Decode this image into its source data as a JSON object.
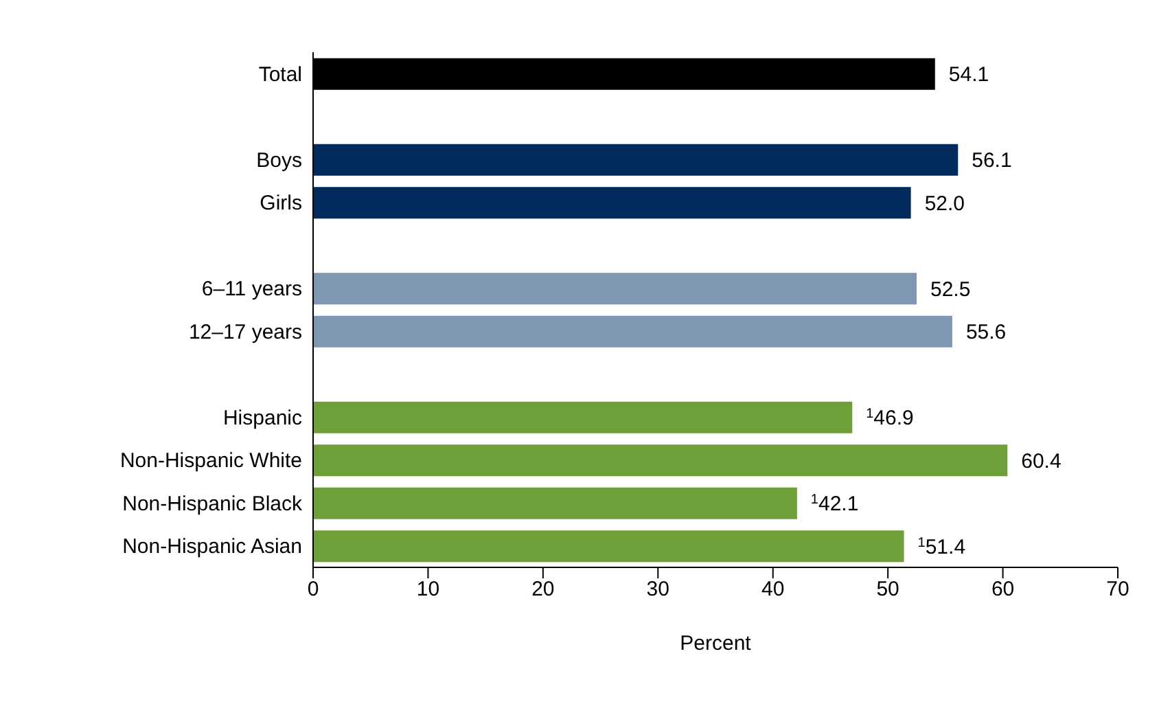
{
  "chart_data": {
    "type": "bar",
    "orientation": "horizontal",
    "xlabel": "Percent",
    "categories": [
      "Total",
      null,
      "Boys",
      "Girls",
      null,
      "6–11 years",
      "12–17 years",
      null,
      "Hispanic",
      "Non-Hispanic White",
      "Non-Hispanic Black",
      "Non-Hispanic Asian"
    ],
    "values": [
      54.1,
      null,
      56.1,
      52.0,
      null,
      52.5,
      55.6,
      null,
      46.9,
      60.4,
      42.1,
      51.4
    ],
    "colors": [
      "#000000",
      null,
      "#002b5c",
      "#002b5c",
      null,
      "#7f97b2",
      "#7f97b2",
      null,
      "#6e9f38",
      "#6e9f38",
      "#6e9f38",
      "#6e9f38"
    ],
    "value_labels": [
      "54.1",
      null,
      "56.1",
      "52.0",
      null,
      "52.5",
      "55.6",
      null,
      "$^{1}$46.9",
      "60.4",
      "$^{1}$42.1",
      "$^{1}$51.4"
    ],
    "xlim": [
      0,
      70
    ],
    "xticks": [
      0,
      10,
      20,
      30,
      40,
      50,
      60,
      70
    ],
    "grid": false,
    "legend": false
  }
}
